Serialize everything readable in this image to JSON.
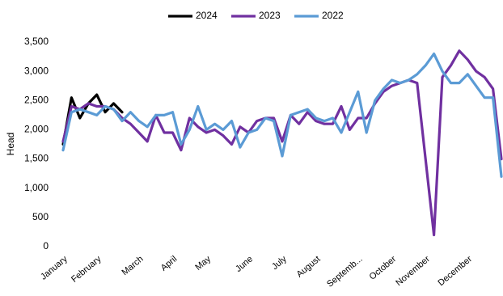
{
  "chart_data": {
    "type": "line",
    "y_label": "Head",
    "categories": [
      "January",
      null,
      null,
      null,
      "February",
      null,
      null,
      null,
      null,
      "March",
      null,
      null,
      null,
      "April",
      null,
      null,
      null,
      "May",
      null,
      null,
      null,
      null,
      "June",
      null,
      null,
      null,
      "July",
      null,
      null,
      null,
      "August",
      null,
      null,
      null,
      null,
      "Septemb...",
      null,
      null,
      null,
      "October",
      null,
      null,
      null,
      "November",
      null,
      null,
      null,
      null,
      "December",
      null,
      null,
      null,
      null
    ],
    "series": [
      {
        "name": "2024",
        "color": "#000000",
        "values": [
          1750,
          2550,
          2200,
          2450,
          2600,
          2300,
          2450,
          2300,
          null,
          null,
          null,
          null,
          null,
          null,
          null,
          null,
          null,
          null,
          null,
          null,
          null,
          null,
          null,
          null,
          null,
          null,
          null,
          null,
          null,
          null,
          null,
          null,
          null,
          null,
          null,
          null,
          null,
          null,
          null,
          null,
          null,
          null,
          null,
          null,
          null,
          null,
          null,
          null,
          null,
          null,
          null,
          null,
          null
        ]
      },
      {
        "name": "2023",
        "color": "#7030a0",
        "values": [
          1800,
          2400,
          2350,
          2450,
          2400,
          2400,
          2350,
          2200,
          2100,
          1950,
          1800,
          2250,
          1950,
          1950,
          1650,
          2200,
          2050,
          1950,
          2000,
          1900,
          1750,
          2050,
          1950,
          2150,
          2200,
          2200,
          1800,
          2250,
          2100,
          2300,
          2150,
          2100,
          2100,
          2400,
          2000,
          2200,
          2200,
          2450,
          2650,
          2750,
          2800,
          2850,
          2800,
          1500,
          200,
          2900,
          3100,
          3350,
          3200,
          3000,
          2900,
          2700,
          1500
        ]
      },
      {
        "name": "2022",
        "color": "#5b9bd5",
        "values": [
          1650,
          2300,
          2350,
          2300,
          2250,
          2400,
          2350,
          2150,
          2300,
          2150,
          2050,
          2250,
          2250,
          2300,
          1750,
          2000,
          2400,
          2000,
          2100,
          2000,
          2150,
          1700,
          1950,
          2000,
          2200,
          2150,
          1550,
          2250,
          2300,
          2350,
          2200,
          2150,
          2200,
          1950,
          2300,
          2650,
          1950,
          2500,
          2700,
          2850,
          2800,
          2850,
          2950,
          3100,
          3300,
          3000,
          2800,
          2800,
          2950,
          2750,
          2550,
          2550,
          1200
        ]
      }
    ],
    "ylim": [
      0,
      3500
    ],
    "yticks": [
      0,
      500,
      {
        "value": 1000,
        "label": "1,000"
      },
      {
        "value": 1500,
        "label": "1,500"
      },
      {
        "value": 2000,
        "label": "2,000"
      },
      {
        "value": 2500,
        "label": "2,500"
      },
      {
        "value": 3000,
        "label": "3,000"
      },
      {
        "value": 3500,
        "label": "3,500"
      }
    ],
    "grid": false,
    "legend": "top"
  }
}
